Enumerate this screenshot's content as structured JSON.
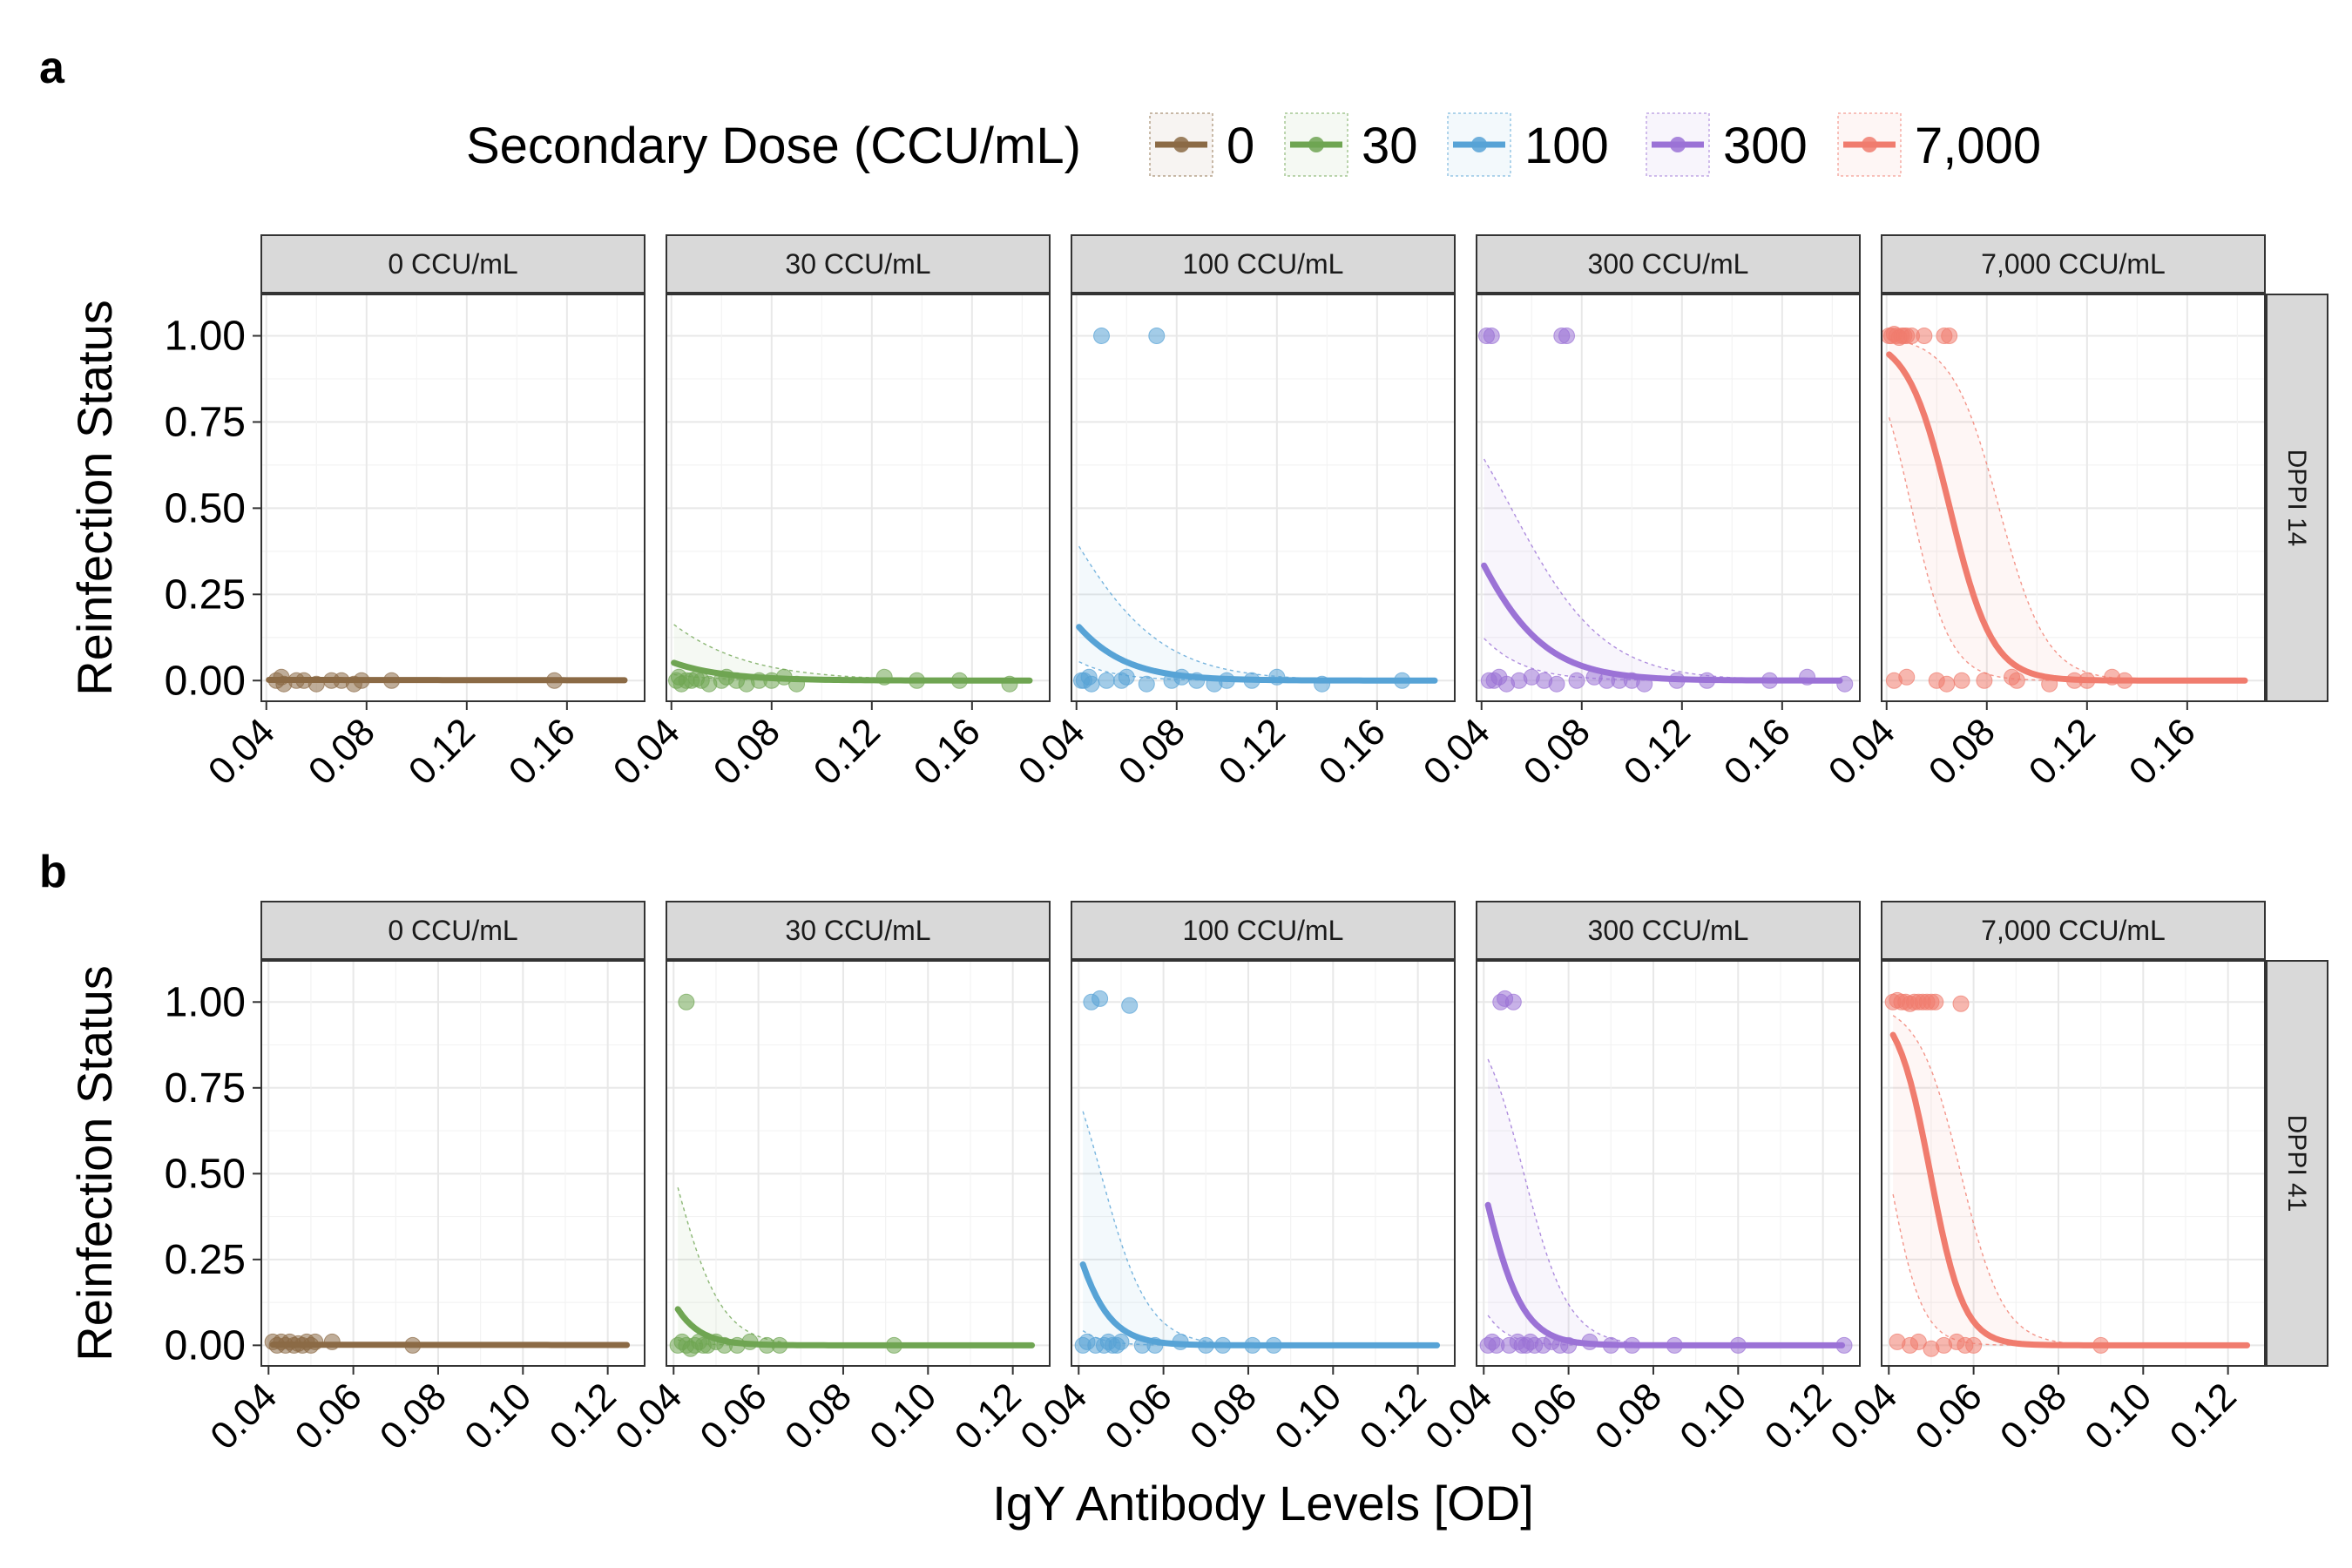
{
  "figure": {
    "panel_labels": [
      "a",
      "b"
    ],
    "legend": {
      "title": "Secondary Dose (CCU/mL)",
      "items": [
        {
          "label": "0",
          "color": "#8B6A45"
        },
        {
          "label": "30",
          "color": "#6FA552"
        },
        {
          "label": "100",
          "color": "#57A3D6"
        },
        {
          "label": "300",
          "color": "#9B72D6"
        },
        {
          "label": "7,000",
          "color": "#F07C6E"
        }
      ]
    },
    "y_axis_title": "Reinfection Status",
    "x_axis_title": "IgY Antibody Levels [OD]"
  },
  "chart_data": [
    {
      "type": "scatter",
      "panel": "a",
      "row_strip": "DPPI 14",
      "xlim": [
        0.038,
        0.191
      ],
      "ylim": [
        -0.06,
        1.12
      ],
      "x_ticks": [
        "0.04",
        "0.08",
        "0.12",
        "0.16"
      ],
      "x_tick_values": [
        0.04,
        0.08,
        0.12,
        0.16
      ],
      "y_ticks": [
        "0.00",
        "0.25",
        "0.50",
        "0.75",
        "1.00"
      ],
      "y_tick_values": [
        0,
        0.25,
        0.5,
        0.75,
        1
      ],
      "grid": true,
      "facets": [
        {
          "strip": "0  CCU/mL",
          "dose": "0",
          "color": "#8B6A45",
          "points": [
            [
              0.044,
              0
            ],
            [
              0.046,
              0.01
            ],
            [
              0.047,
              -0.01
            ],
            [
              0.052,
              0
            ],
            [
              0.055,
              0
            ],
            [
              0.06,
              -0.01
            ],
            [
              0.066,
              0
            ],
            [
              0.07,
              0
            ],
            [
              0.075,
              -0.01
            ],
            [
              0.078,
              0
            ],
            [
              0.09,
              0
            ],
            [
              0.155,
              0
            ]
          ],
          "fit": {
            "b0": -6,
            "b1": -5,
            "xmax": 0.183
          },
          "ci": {
            "lower": {
              "b0": -7,
              "b1": -6
            },
            "upper": {
              "b0": -5,
              "b1": -4
            }
          }
        },
        {
          "strip": "30 CCU/mL",
          "dose": "30",
          "color": "#6FA552",
          "points": [
            [
              0.042,
              0
            ],
            [
              0.043,
              0.01
            ],
            [
              0.044,
              -0.01
            ],
            [
              0.046,
              0
            ],
            [
              0.048,
              0
            ],
            [
              0.05,
              0.005
            ],
            [
              0.052,
              0
            ],
            [
              0.055,
              -0.01
            ],
            [
              0.06,
              0
            ],
            [
              0.062,
              0.01
            ],
            [
              0.066,
              0
            ],
            [
              0.07,
              -0.01
            ],
            [
              0.075,
              0
            ],
            [
              0.08,
              0
            ],
            [
              0.085,
              0.01
            ],
            [
              0.09,
              -0.01
            ],
            [
              0.125,
              0.01
            ],
            [
              0.138,
              0
            ],
            [
              0.155,
              0
            ],
            [
              0.175,
              -0.01
            ]
          ],
          "fit": {
            "b0": -0.78,
            "b1": -52,
            "xmax": 0.183
          },
          "ci": {
            "lower": {
              "b0": -1.5,
              "b1": -62
            },
            "upper": {
              "b0": 0.0,
              "b1": -40
            }
          }
        },
        {
          "strip": "100 CCU/mL",
          "dose": "100",
          "color": "#57A3D6",
          "points": [
            [
              0.042,
              0
            ],
            [
              0.043,
              0
            ],
            [
              0.045,
              0.01
            ],
            [
              0.046,
              -0.01
            ],
            [
              0.05,
              1
            ],
            [
              0.052,
              0
            ],
            [
              0.058,
              0
            ],
            [
              0.06,
              0.01
            ],
            [
              0.068,
              -0.01
            ],
            [
              0.072,
              1
            ],
            [
              0.078,
              0
            ],
            [
              0.082,
              0.01
            ],
            [
              0.088,
              0
            ],
            [
              0.095,
              -0.01
            ],
            [
              0.1,
              0
            ],
            [
              0.11,
              0
            ],
            [
              0.12,
              0.01
            ],
            [
              0.138,
              -0.01
            ],
            [
              0.17,
              0
            ]
          ],
          "fit": {
            "b0": 0.85,
            "b1": -62,
            "xmax": 0.183
          },
          "ci": {
            "lower": {
              "b0": 0.1,
              "b1": -72
            },
            "upper": {
              "b0": 1.6,
              "b1": -50
            }
          }
        },
        {
          "strip": "300 CCU/mL",
          "dose": "300",
          "color": "#9B72D6",
          "points": [
            [
              0.042,
              1
            ],
            [
              0.043,
              0
            ],
            [
              0.044,
              1
            ],
            [
              0.045,
              0
            ],
            [
              0.047,
              0.01
            ],
            [
              0.05,
              -0.01
            ],
            [
              0.055,
              0
            ],
            [
              0.06,
              0.01
            ],
            [
              0.065,
              0
            ],
            [
              0.07,
              -0.01
            ],
            [
              0.072,
              1
            ],
            [
              0.074,
              1
            ],
            [
              0.078,
              0
            ],
            [
              0.085,
              0.01
            ],
            [
              0.09,
              0
            ],
            [
              0.095,
              0
            ],
            [
              0.1,
              0
            ],
            [
              0.105,
              -0.01
            ],
            [
              0.118,
              0
            ],
            [
              0.13,
              0
            ],
            [
              0.155,
              0
            ],
            [
              0.17,
              0.01
            ],
            [
              0.185,
              -0.01
            ]
          ],
          "fit": {
            "b0": 1.85,
            "b1": -62,
            "xmax": 0.183
          },
          "ci": {
            "lower": {
              "b0": 0.9,
              "b1": -70
            },
            "upper": {
              "b0": 2.8,
              "b1": -54
            }
          }
        },
        {
          "strip": "7,000 CCU/mL",
          "dose": "7,000",
          "color": "#F07C6E",
          "points": [
            [
              0.041,
              1
            ],
            [
              0.042,
              1
            ],
            [
              0.043,
              1.005
            ],
            [
              0.044,
              1
            ],
            [
              0.045,
              0.995
            ],
            [
              0.046,
              1
            ],
            [
              0.047,
              1
            ],
            [
              0.048,
              1
            ],
            [
              0.05,
              1
            ],
            [
              0.055,
              1
            ],
            [
              0.063,
              1
            ],
            [
              0.065,
              1
            ],
            [
              0.043,
              0
            ],
            [
              0.048,
              0.01
            ],
            [
              0.06,
              0
            ],
            [
              0.064,
              -0.01
            ],
            [
              0.07,
              0
            ],
            [
              0.079,
              0
            ],
            [
              0.09,
              0.01
            ],
            [
              0.092,
              0
            ],
            [
              0.105,
              -0.01
            ],
            [
              0.115,
              0
            ],
            [
              0.12,
              0
            ],
            [
              0.13,
              0.01
            ],
            [
              0.135,
              0
            ]
          ],
          "fit": {
            "b0": 7.7,
            "b1": -118,
            "xmax": 0.183
          },
          "ci": {
            "lower": {
              "b0": 6.5,
              "b1": -130
            },
            "upper": {
              "b0": 9.0,
              "b1": -106
            }
          }
        }
      ]
    },
    {
      "type": "scatter",
      "panel": "b",
      "row_strip": "DPPI 41",
      "xlim": [
        0.0383,
        0.1287
      ],
      "ylim": [
        -0.06,
        1.12
      ],
      "x_ticks": [
        "0.04",
        "0.06",
        "0.08",
        "0.10",
        "0.12"
      ],
      "x_tick_values": [
        0.04,
        0.06,
        0.08,
        0.1,
        0.12
      ],
      "y_ticks": [
        "0.00",
        "0.25",
        "0.50",
        "0.75",
        "1.00"
      ],
      "y_tick_values": [
        0,
        0.25,
        0.5,
        0.75,
        1
      ],
      "grid": true,
      "facets": [
        {
          "strip": "0  CCU/mL",
          "dose": "0",
          "color": "#8B6A45",
          "points": [
            [
              0.041,
              0.01
            ],
            [
              0.042,
              0
            ],
            [
              0.043,
              0.01
            ],
            [
              0.044,
              0
            ],
            [
              0.045,
              0.01
            ],
            [
              0.046,
              0
            ],
            [
              0.047,
              0.005
            ],
            [
              0.048,
              0
            ],
            [
              0.049,
              0.01
            ],
            [
              0.05,
              0
            ],
            [
              0.051,
              0.01
            ],
            [
              0.055,
              0.01
            ],
            [
              0.074,
              0
            ]
          ],
          "fit": {
            "b0": -6,
            "b1": -8,
            "xmax": 0.1245
          },
          "ci": {
            "lower": {
              "b0": -7,
              "b1": -9
            },
            "upper": {
              "b0": -5,
              "b1": -7
            }
          }
        },
        {
          "strip": "30 CCU/mL",
          "dose": "30",
          "color": "#6FA552",
          "points": [
            [
              0.041,
              0
            ],
            [
              0.042,
              0.01
            ],
            [
              0.043,
              1
            ],
            [
              0.043,
              0
            ],
            [
              0.044,
              -0.01
            ],
            [
              0.045,
              0
            ],
            [
              0.046,
              0.01
            ],
            [
              0.047,
              0
            ],
            [
              0.048,
              0
            ],
            [
              0.05,
              0.01
            ],
            [
              0.052,
              0
            ],
            [
              0.055,
              0
            ],
            [
              0.058,
              0.01
            ],
            [
              0.062,
              0
            ],
            [
              0.065,
              0
            ],
            [
              0.092,
              0
            ]
          ],
          "fit": {
            "b0": 6.1,
            "b1": -201,
            "xmax": 0.1245
          },
          "ci": {
            "lower": {
              "b0": 4.9,
              "b1": -220
            },
            "upper": {
              "b0": 7.3,
              "b1": -182
            }
          }
        },
        {
          "strip": "100 CCU/mL",
          "dose": "100",
          "color": "#57A3D6",
          "points": [
            [
              0.041,
              0
            ],
            [
              0.042,
              0.01
            ],
            [
              0.043,
              1
            ],
            [
              0.044,
              0
            ],
            [
              0.045,
              1.01
            ],
            [
              0.046,
              0
            ],
            [
              0.047,
              0.01
            ],
            [
              0.048,
              0
            ],
            [
              0.049,
              0
            ],
            [
              0.05,
              0.01
            ],
            [
              0.052,
              0.99
            ],
            [
              0.055,
              0
            ],
            [
              0.058,
              0
            ],
            [
              0.064,
              0.01
            ],
            [
              0.07,
              0
            ],
            [
              0.074,
              0
            ],
            [
              0.081,
              0
            ],
            [
              0.086,
              0
            ]
          ],
          "fit": {
            "b0": 6.9,
            "b1": -197,
            "xmax": 0.1245
          },
          "ci": {
            "lower": {
              "b0": 5.7,
              "b1": -215
            },
            "upper": {
              "b0": 8.1,
              "b1": -179
            }
          }
        },
        {
          "strip": "300 CCU/mL",
          "dose": "300",
          "color": "#9B72D6",
          "points": [
            [
              0.041,
              0
            ],
            [
              0.042,
              0.01
            ],
            [
              0.043,
              0
            ],
            [
              0.044,
              1
            ],
            [
              0.045,
              1.01
            ],
            [
              0.046,
              0
            ],
            [
              0.047,
              1
            ],
            [
              0.048,
              0.01
            ],
            [
              0.049,
              0
            ],
            [
              0.05,
              0
            ],
            [
              0.051,
              0.01
            ],
            [
              0.052,
              0
            ],
            [
              0.054,
              0
            ],
            [
              0.056,
              0.01
            ],
            [
              0.058,
              0
            ],
            [
              0.06,
              0
            ],
            [
              0.065,
              0.01
            ],
            [
              0.07,
              0
            ],
            [
              0.075,
              0
            ],
            [
              0.085,
              0
            ],
            [
              0.1,
              0
            ],
            [
              0.125,
              0
            ]
          ],
          "fit": {
            "b0": 8.2,
            "b1": -209,
            "xmax": 0.1245
          },
          "ci": {
            "lower": {
              "b0": 7.0,
              "b1": -228
            },
            "upper": {
              "b0": 9.4,
              "b1": -190
            }
          }
        },
        {
          "strip": "7,000 CCU/mL",
          "dose": "7,000",
          "color": "#F07C6E",
          "points": [
            [
              0.041,
              1
            ],
            [
              0.042,
              1.005
            ],
            [
              0.043,
              1
            ],
            [
              0.044,
              1
            ],
            [
              0.045,
              0.995
            ],
            [
              0.046,
              1
            ],
            [
              0.047,
              1
            ],
            [
              0.048,
              1
            ],
            [
              0.049,
              1
            ],
            [
              0.05,
              1
            ],
            [
              0.051,
              1
            ],
            [
              0.057,
              0.995
            ],
            [
              0.042,
              0.01
            ],
            [
              0.045,
              0
            ],
            [
              0.047,
              0.01
            ],
            [
              0.05,
              -0.01
            ],
            [
              0.053,
              0
            ],
            [
              0.056,
              0.01
            ],
            [
              0.058,
              0
            ],
            [
              0.06,
              0
            ],
            [
              0.09,
              0
            ]
          ],
          "fit": {
            "b0": 12.7,
            "b1": -255,
            "xmax": 0.1245
          },
          "ci": {
            "lower": {
              "b0": 10.5,
              "b1": -262
            },
            "upper": {
              "b0": 11.4,
              "b1": -200
            }
          }
        }
      ]
    }
  ]
}
